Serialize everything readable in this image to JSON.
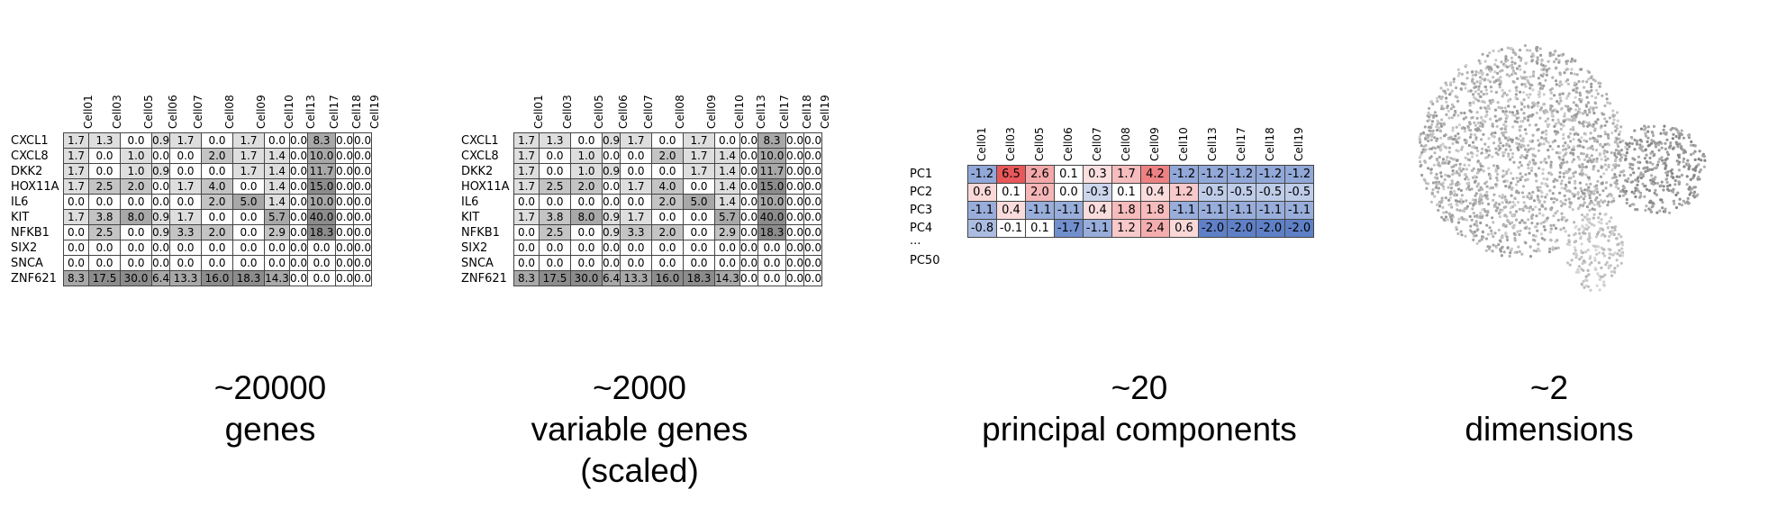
{
  "matrix_raw": {
    "columns": [
      "Cell01",
      "Cell03",
      "Cell05",
      "Cell06",
      "Cell07",
      "Cell08",
      "Cell09",
      "Cell10",
      "Cell13",
      "Cell17",
      "Cell18",
      "Cell19"
    ],
    "rows": [
      {
        "gene": "CXCL1",
        "values": [
          "1.7",
          "1.3",
          "0.0",
          "0.9",
          "1.7",
          "0.0",
          "1.7",
          "0.0",
          "0.0",
          "8.3",
          "0.0",
          "0.0"
        ]
      },
      {
        "gene": "CXCL8",
        "values": [
          "1.7",
          "0.0",
          "1.0",
          "0.0",
          "0.0",
          "2.0",
          "1.7",
          "1.4",
          "0.0",
          "10.0",
          "0.0",
          "0.0"
        ]
      },
      {
        "gene": "DKK2",
        "values": [
          "1.7",
          "0.0",
          "1.0",
          "0.9",
          "0.0",
          "0.0",
          "1.7",
          "1.4",
          "0.0",
          "11.7",
          "0.0",
          "0.0"
        ]
      },
      {
        "gene": "HOX11A",
        "values": [
          "1.7",
          "2.5",
          "2.0",
          "0.0",
          "1.7",
          "4.0",
          "0.0",
          "1.4",
          "0.0",
          "15.0",
          "0.0",
          "0.0"
        ]
      },
      {
        "gene": "IL6",
        "values": [
          "0.0",
          "0.0",
          "0.0",
          "0.0",
          "0.0",
          "2.0",
          "5.0",
          "1.4",
          "0.0",
          "10.0",
          "0.0",
          "0.0"
        ]
      },
      {
        "gene": "KIT",
        "values": [
          "1.7",
          "3.8",
          "8.0",
          "0.9",
          "1.7",
          "0.0",
          "0.0",
          "5.7",
          "0.0",
          "40.0",
          "0.0",
          "0.0"
        ]
      },
      {
        "gene": "NFKB1",
        "values": [
          "0.0",
          "2.5",
          "0.0",
          "0.9",
          "3.3",
          "2.0",
          "0.0",
          "2.9",
          "0.0",
          "18.3",
          "0.0",
          "0.0"
        ]
      },
      {
        "gene": "SIX2",
        "values": [
          "0.0",
          "0.0",
          "0.0",
          "0.0",
          "0.0",
          "0.0",
          "0.0",
          "0.0",
          "0.0",
          "0.0",
          "0.0",
          "0.0"
        ]
      },
      {
        "gene": "SNCA",
        "values": [
          "0.0",
          "0.0",
          "0.0",
          "0.0",
          "0.0",
          "0.0",
          "0.0",
          "0.0",
          "0.0",
          "0.0",
          "0.0",
          "0.0"
        ]
      },
      {
        "gene": "ZNF621",
        "values": [
          "8.3",
          "17.5",
          "30.0",
          "6.4",
          "13.3",
          "16.0",
          "18.3",
          "14.3",
          "0.0",
          "0.0",
          "0.0",
          "0.0"
        ]
      }
    ]
  },
  "matrix_scaled": {
    "columns": [
      "Cell01",
      "Cell03",
      "Cell05",
      "Cell06",
      "Cell07",
      "Cell08",
      "Cell09",
      "Cell10",
      "Cell13",
      "Cell17",
      "Cell18",
      "Cell19"
    ],
    "rows": [
      {
        "gene": "CXCL1",
        "values": [
          "1.7",
          "1.3",
          "0.0",
          "0.9",
          "1.7",
          "0.0",
          "1.7",
          "0.0",
          "0.0",
          "8.3",
          "0.0",
          "0.0"
        ]
      },
      {
        "gene": "CXCL8",
        "values": [
          "1.7",
          "0.0",
          "1.0",
          "0.0",
          "0.0",
          "2.0",
          "1.7",
          "1.4",
          "0.0",
          "10.0",
          "0.0",
          "0.0"
        ]
      },
      {
        "gene": "DKK2",
        "values": [
          "1.7",
          "0.0",
          "1.0",
          "0.9",
          "0.0",
          "0.0",
          "1.7",
          "1.4",
          "0.0",
          "11.7",
          "0.0",
          "0.0"
        ]
      },
      {
        "gene": "HOX11A",
        "values": [
          "1.7",
          "2.5",
          "2.0",
          "0.0",
          "1.7",
          "4.0",
          "0.0",
          "1.4",
          "0.0",
          "15.0",
          "0.0",
          "0.0"
        ]
      },
      {
        "gene": "IL6",
        "values": [
          "0.0",
          "0.0",
          "0.0",
          "0.0",
          "0.0",
          "2.0",
          "5.0",
          "1.4",
          "0.0",
          "10.0",
          "0.0",
          "0.0"
        ]
      },
      {
        "gene": "KIT",
        "values": [
          "1.7",
          "3.8",
          "8.0",
          "0.9",
          "1.7",
          "0.0",
          "0.0",
          "5.7",
          "0.0",
          "40.0",
          "0.0",
          "0.0"
        ]
      },
      {
        "gene": "NFKB1",
        "values": [
          "0.0",
          "2.5",
          "0.0",
          "0.9",
          "3.3",
          "2.0",
          "0.0",
          "2.9",
          "0.0",
          "18.3",
          "0.0",
          "0.0"
        ]
      },
      {
        "gene": "SIX2",
        "values": [
          "0.0",
          "0.0",
          "0.0",
          "0.0",
          "0.0",
          "0.0",
          "0.0",
          "0.0",
          "0.0",
          "0.0",
          "0.0",
          "0.0"
        ]
      },
      {
        "gene": "SNCA",
        "values": [
          "0.0",
          "0.0",
          "0.0",
          "0.0",
          "0.0",
          "0.0",
          "0.0",
          "0.0",
          "0.0",
          "0.0",
          "0.0",
          "0.0"
        ]
      },
      {
        "gene": "ZNF621",
        "values": [
          "8.3",
          "17.5",
          "30.0",
          "6.4",
          "13.3",
          "16.0",
          "18.3",
          "14.3",
          "0.0",
          "0.0",
          "0.0",
          "0.0"
        ]
      }
    ]
  },
  "pca": {
    "columns": [
      "Cell01",
      "Cell03",
      "Cell05",
      "Cell06",
      "Cell07",
      "Cell08",
      "Cell09",
      "Cell10",
      "Cell13",
      "Cell17",
      "Cell18",
      "Cell19"
    ],
    "rows": [
      {
        "pc": "PC1",
        "values": [
          "-1.2",
          "6.5",
          "2.6",
          "0.1",
          "0.3",
          "1.7",
          "4.2",
          "-1.2",
          "-1.2",
          "-1.2",
          "-1.2",
          "-1.2"
        ]
      },
      {
        "pc": "PC2",
        "values": [
          "0.6",
          "0.1",
          "2.0",
          "0.0",
          "-0.3",
          "0.1",
          "0.4",
          "1.2",
          "-0.5",
          "-0.5",
          "-0.5",
          "-0.5"
        ]
      },
      {
        "pc": "PC3",
        "values": [
          "-1.1",
          "0.4",
          "-1.1",
          "-1.1",
          "0.4",
          "1.8",
          "1.8",
          "-1.1",
          "-1.1",
          "-1.1",
          "-1.1",
          "-1.1"
        ]
      },
      {
        "pc": "PC4",
        "values": [
          "-0.8",
          "-0.1",
          "0.1",
          "-1.7",
          "-1.1",
          "1.2",
          "2.4",
          "0.6",
          "-2.0",
          "-2.0",
          "-2.0",
          "-2.0"
        ]
      }
    ],
    "extra_labels": [
      "...",
      "PC50"
    ]
  },
  "captions": {
    "genes": {
      "line1": "~20000",
      "line2": "genes"
    },
    "variable": {
      "line1": "~2000",
      "line2": "variable genes",
      "line3": "(scaled)"
    },
    "pcs": {
      "line1": "~20",
      "line2": "principal components"
    },
    "dims": {
      "line1": "~2",
      "line2": "dimensions"
    }
  },
  "colors": {
    "background": "#ffffff",
    "grid_border": "#444444",
    "pca_positive": "#e8585a",
    "pca_negative": "#5a7cc4",
    "umap_points": "#9a9a9a"
  }
}
